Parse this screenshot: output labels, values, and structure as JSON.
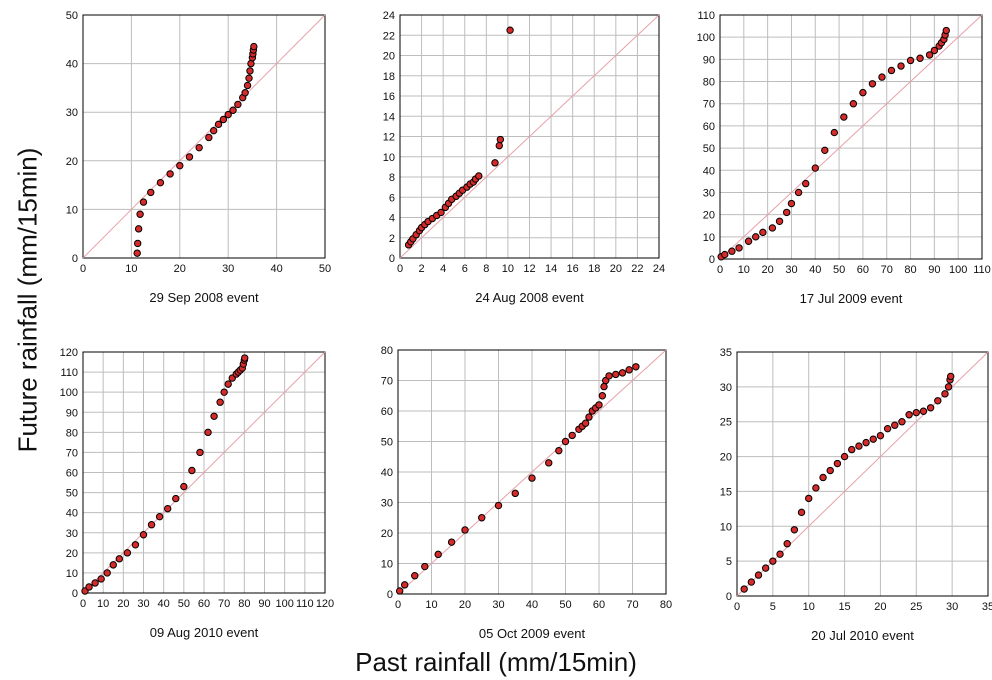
{
  "figure": {
    "ylabel": "Future rainfall (mm/15min)",
    "xlabel": "Past rainfall (mm/15min)"
  },
  "chart_data": [
    {
      "type": "scatter",
      "title": "29 Sep 2008 event",
      "xlim": [
        0,
        50
      ],
      "ylim": [
        0,
        50
      ],
      "xticks": [
        0,
        10,
        20,
        30,
        40,
        50
      ],
      "yticks": [
        0,
        10,
        20,
        30,
        40,
        50
      ],
      "grid": true,
      "reference_line": "y = x",
      "colors": {
        "points": "#d62b2b",
        "outline": "#000000",
        "reference": "#e8a0a8"
      },
      "series": [
        {
          "x": [
            11.2,
            11.3,
            11.5,
            11.8,
            12.5,
            14,
            16,
            18,
            20,
            22,
            24,
            26,
            27,
            28,
            29,
            30,
            31,
            32,
            33,
            33.5,
            34,
            34.3,
            34.5,
            34.7,
            35,
            35.1,
            35.2,
            35.3
          ],
          "y": [
            1,
            3,
            6,
            9,
            11.5,
            13.5,
            15.5,
            17.3,
            19,
            20.8,
            22.7,
            24.8,
            26.2,
            27.5,
            28.5,
            29.5,
            30.4,
            31.6,
            33,
            34,
            35.5,
            37,
            38.5,
            40,
            41.2,
            42,
            42.8,
            43.5
          ]
        }
      ]
    },
    {
      "type": "scatter",
      "title": "24 Aug 2008 event",
      "xlim": [
        0,
        24
      ],
      "ylim": [
        0,
        24
      ],
      "xticks": [
        0,
        2,
        4,
        6,
        8,
        10,
        12,
        14,
        16,
        18,
        20,
        22,
        24
      ],
      "yticks": [
        0,
        2,
        4,
        6,
        8,
        10,
        12,
        14,
        16,
        18,
        20,
        22,
        24
      ],
      "grid": true,
      "reference_line": "y = x",
      "colors": {
        "points": "#d62b2b",
        "outline": "#000000",
        "reference": "#e8a0a8"
      },
      "series": [
        {
          "x": [
            0.8,
            1,
            1.2,
            1.5,
            1.8,
            2,
            2.3,
            2.6,
            3,
            3.4,
            3.8,
            4.2,
            4.5,
            4.8,
            5.2,
            5.5,
            5.8,
            6.2,
            6.5,
            6.8,
            7,
            7.3,
            8.8,
            9.2,
            9.3,
            10.2
          ],
          "y": [
            1.3,
            1.6,
            1.9,
            2.3,
            2.7,
            3,
            3.3,
            3.6,
            3.9,
            4.2,
            4.5,
            5,
            5.4,
            5.8,
            6.1,
            6.4,
            6.7,
            7,
            7.3,
            7.5,
            7.8,
            8.1,
            9.4,
            11.1,
            11.7,
            22.5
          ]
        }
      ]
    },
    {
      "type": "scatter",
      "title": "17 Jul 2009 event",
      "xlim": [
        0,
        110
      ],
      "ylim": [
        0,
        110
      ],
      "xticks": [
        0,
        10,
        20,
        30,
        40,
        50,
        60,
        70,
        80,
        90,
        100,
        110
      ],
      "xticklabels": [
        "0",
        "10",
        "20",
        "30",
        "40",
        "50",
        "60",
        "70",
        "80",
        "90",
        "100",
        "110"
      ],
      "yticks": [
        0,
        10,
        20,
        30,
        40,
        50,
        60,
        70,
        80,
        90,
        100,
        110
      ],
      "grid": true,
      "reference_line": "y = x",
      "colors": {
        "points": "#d62b2b",
        "outline": "#000000",
        "reference": "#e8a0a8"
      },
      "series": [
        {
          "x": [
            0.5,
            2,
            5,
            8,
            12,
            15,
            18,
            22,
            25,
            28,
            30,
            33,
            36,
            40,
            44,
            48,
            52,
            56,
            60,
            64,
            68,
            72,
            76,
            80,
            84,
            88,
            90,
            92,
            93,
            94,
            94.5,
            95
          ],
          "y": [
            1,
            2,
            3.5,
            5,
            8,
            10,
            12,
            14,
            17,
            21,
            25,
            30,
            34,
            41,
            49,
            57,
            64,
            70,
            75,
            79,
            82,
            85,
            87,
            89.5,
            90.5,
            92,
            94,
            96,
            97.5,
            99,
            101,
            103
          ]
        }
      ]
    },
    {
      "type": "scatter",
      "title": "09 Aug 2010 event",
      "xlim": [
        0,
        120
      ],
      "ylim": [
        0,
        120
      ],
      "xticks": [
        0,
        10,
        20,
        30,
        40,
        50,
        60,
        70,
        80,
        90,
        100,
        110,
        120
      ],
      "xticklabels": [
        "0",
        "10",
        "20",
        "30",
        "40",
        "50",
        "60",
        "70",
        "80",
        "90",
        "100",
        "110",
        "120"
      ],
      "yticks": [
        0,
        10,
        20,
        30,
        40,
        50,
        60,
        70,
        80,
        90,
        100,
        110,
        120
      ],
      "grid": true,
      "reference_line": "y = x",
      "colors": {
        "points": "#d62b2b",
        "outline": "#000000",
        "reference": "#e8a0a8"
      },
      "series": [
        {
          "x": [
            1,
            3,
            6,
            9,
            12,
            15,
            18,
            22,
            26,
            30,
            34,
            38,
            42,
            46,
            50,
            54,
            58,
            62,
            65,
            68,
            70,
            72,
            74,
            76,
            77,
            78,
            79,
            79.5,
            80,
            80.2
          ],
          "y": [
            1,
            3,
            5,
            7,
            10,
            14,
            17,
            20,
            24,
            29,
            34,
            38,
            42,
            47,
            53,
            61,
            70,
            80,
            88,
            95,
            100,
            104,
            107,
            109,
            110,
            111,
            112,
            114,
            116,
            117
          ]
        }
      ]
    },
    {
      "type": "scatter",
      "title": "05 Oct 2009 event",
      "xlim": [
        0,
        80
      ],
      "ylim": [
        0,
        80
      ],
      "xticks": [
        0,
        10,
        20,
        30,
        40,
        50,
        60,
        70,
        80
      ],
      "yticks": [
        0,
        10,
        20,
        30,
        40,
        50,
        60,
        70,
        80
      ],
      "grid": true,
      "reference_line": "y = x",
      "colors": {
        "points": "#d62b2b",
        "outline": "#000000",
        "reference": "#e8a0a8"
      },
      "series": [
        {
          "x": [
            0.5,
            2,
            5,
            8,
            12,
            16,
            20,
            25,
            30,
            35,
            40,
            45,
            48,
            50,
            52,
            54,
            55,
            56,
            57,
            58,
            59,
            60,
            61,
            61.5,
            62,
            63,
            65,
            67,
            69,
            71
          ],
          "y": [
            1,
            3,
            6,
            9,
            13,
            17,
            21,
            25,
            29,
            33,
            38,
            43,
            47,
            50,
            52,
            54,
            55,
            56,
            58,
            60,
            61,
            62,
            65,
            68,
            70,
            71.5,
            72,
            72.5,
            73.5,
            74.5
          ]
        }
      ]
    },
    {
      "type": "scatter",
      "title": "20 Jul 2010 event",
      "xlim": [
        0,
        35
      ],
      "ylim": [
        0,
        35
      ],
      "xticks": [
        0,
        5,
        10,
        15,
        20,
        25,
        30,
        35
      ],
      "xticklabels": [
        "0",
        "5",
        "10",
        "15",
        "20",
        "25",
        "30",
        "35"
      ],
      "yticks": [
        0,
        5,
        10,
        15,
        20,
        25,
        30,
        35
      ],
      "grid": true,
      "reference_line": "y = x",
      "colors": {
        "points": "#d62b2b",
        "outline": "#000000",
        "reference": "#e8a0a8"
      },
      "series": [
        {
          "x": [
            1,
            2,
            3,
            4,
            5,
            6,
            7,
            8,
            9,
            10,
            11,
            12,
            13,
            14,
            15,
            16,
            17,
            18,
            19,
            20,
            21,
            22,
            23,
            24,
            25,
            26,
            27,
            28,
            29,
            29.5,
            29.7,
            29.8
          ],
          "y": [
            1,
            2,
            3,
            4,
            5,
            6,
            7.5,
            9.5,
            12,
            14,
            15.5,
            17,
            18,
            19,
            20,
            21,
            21.5,
            22,
            22.5,
            23,
            24,
            24.5,
            25,
            26,
            26.3,
            26.5,
            27,
            28,
            29,
            30,
            31,
            31.5
          ]
        }
      ]
    }
  ]
}
